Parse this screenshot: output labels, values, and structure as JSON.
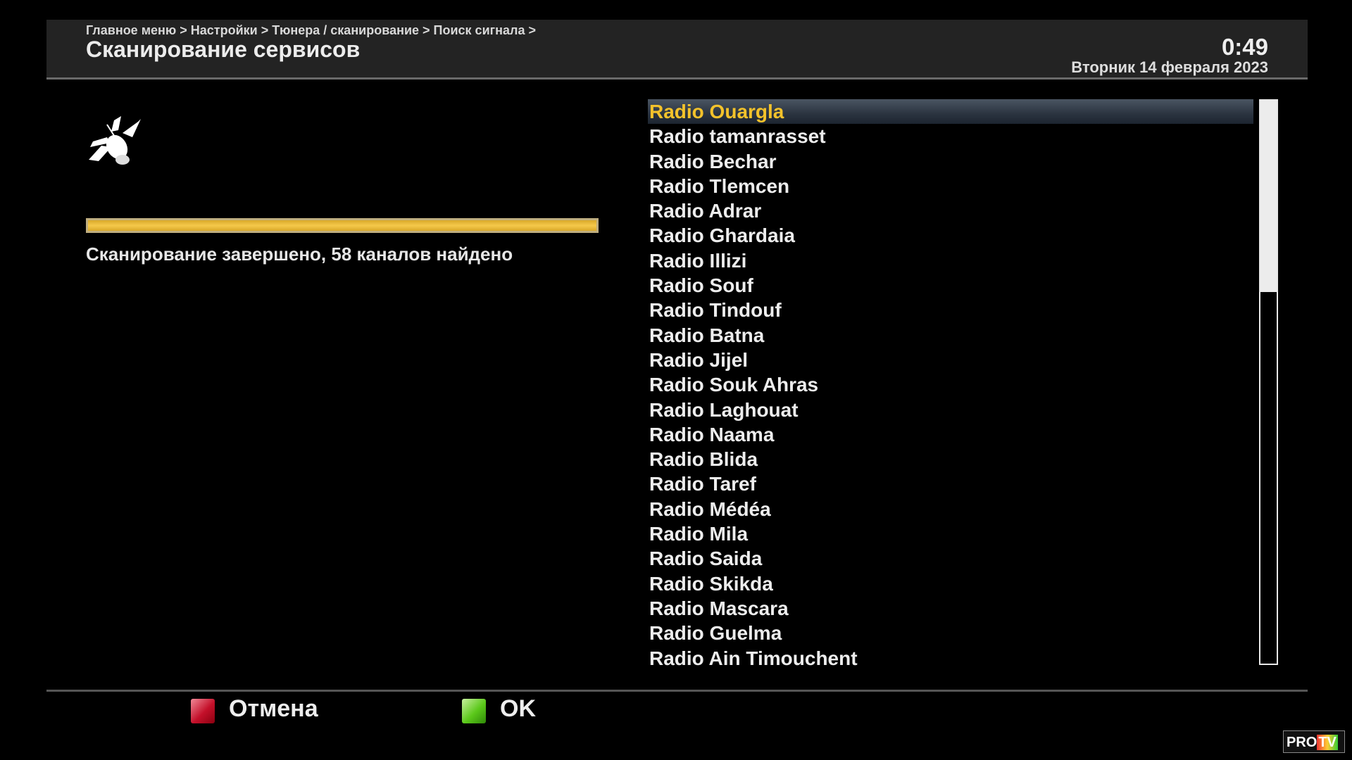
{
  "header": {
    "breadcrumb": "Главное меню > Настройки > Тюнера / сканирование > Поиск сигнала >",
    "title": "Сканирование сервисов",
    "time": "0:49",
    "date": "Вторник 14 февраля 2023"
  },
  "scan": {
    "icon": "satellite-icon",
    "progress_percent": 100,
    "progress_color": "#f5c84a",
    "status": "Сканирование завершено, 58 каналов найдено"
  },
  "channels": {
    "selected_index": 0,
    "selected_color": "#f3c22b",
    "scroll_thumb_fraction": 0.34,
    "items": [
      "Radio Ouargla",
      "Radio tamanrasset",
      "Radio Bechar",
      "Radio Tlemcen",
      "Radio Adrar",
      "Radio Ghardaia",
      "Radio Illizi",
      "Radio Souf",
      "Radio Tindouf",
      "Radio Batna",
      "Radio Jijel",
      "Radio Souk Ahras",
      "Radio Laghouat",
      "Radio Naama",
      "Radio Blida",
      "Radio Taref",
      "Radio Médéa",
      "Radio Mila",
      "Radio Saida",
      "Radio Skikda",
      "Radio Mascara",
      "Radio Guelma",
      "Radio Ain Timouchent"
    ]
  },
  "footer": {
    "cancel_label": "Отмена",
    "cancel_color": "#c4102a",
    "ok_label": "OK",
    "ok_color": "#5bc81a"
  },
  "watermark": {
    "text_pro": "PRO",
    "text_tv": "TV"
  }
}
